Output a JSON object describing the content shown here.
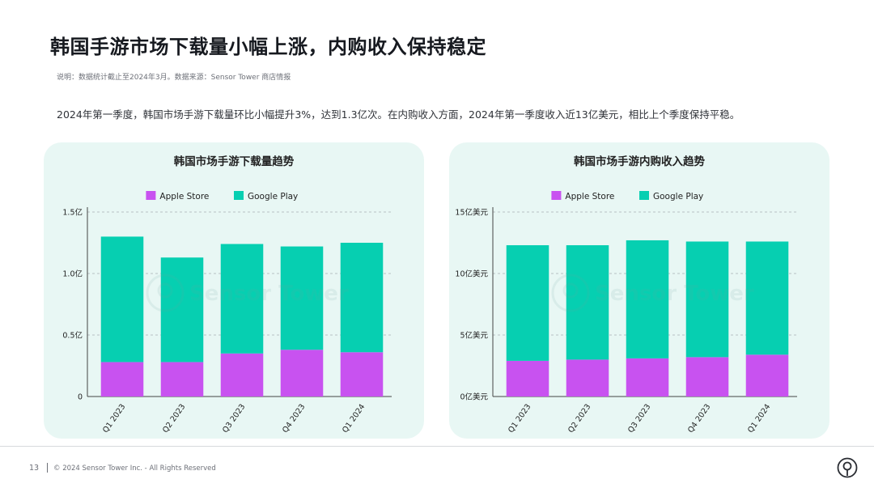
{
  "page": {
    "title": "韩国手游市场下载量小幅上涨，内购收入保持稳定",
    "note": "说明：数据统计截止至2024年3月。数据来源：Sensor Tower 商店情报",
    "summary": "2024年第一季度，韩国市场手游下载量环比小幅提升3%，达到1.3亿次。在内购收入方面，2024年第一季度收入近13亿美元，相比上个季度保持平稳。",
    "page_number": "13",
    "copyright": "© 2024 Sensor Tower Inc. - All Rights Reserved",
    "watermark": "Sensor Tower"
  },
  "colors": {
    "apple": "#c852f0",
    "google": "#06cfb1",
    "panel_bg": "#e8f7f4",
    "grid": "#b9c2c4",
    "axis": "#444444",
    "text": "#222222"
  },
  "chart_data": [
    {
      "type": "bar",
      "stacked": true,
      "title": "韩国市场手游下载量趋势",
      "categories": [
        "Q1 2023",
        "Q2 2023",
        "Q3 2023",
        "Q4 2023",
        "Q1 2024"
      ],
      "series": [
        {
          "name": "Apple Store",
          "values": [
            0.28,
            0.28,
            0.35,
            0.38,
            0.36
          ]
        },
        {
          "name": "Google Play",
          "values": [
            1.02,
            0.85,
            0.89,
            0.84,
            0.89
          ]
        }
      ],
      "ylim": [
        0,
        1.5
      ],
      "yticks": [
        0,
        0.5,
        1.0,
        1.5
      ],
      "ytick_labels": [
        "0",
        "0.5亿",
        "1.0亿",
        "1.5亿"
      ],
      "legend_position": "top",
      "grid": true
    },
    {
      "type": "bar",
      "stacked": true,
      "title": "韩国市场手游内购收入趋势",
      "categories": [
        "Q1 2023",
        "Q2 2023",
        "Q3 2023",
        "Q4 2023",
        "Q1 2024"
      ],
      "series": [
        {
          "name": "Apple Store",
          "values": [
            2.9,
            3.0,
            3.1,
            3.2,
            3.4
          ]
        },
        {
          "name": "Google Play",
          "values": [
            9.4,
            9.3,
            9.6,
            9.4,
            9.2
          ]
        }
      ],
      "ylim": [
        0,
        15
      ],
      "yticks": [
        0,
        5,
        10,
        15
      ],
      "ytick_labels": [
        "0亿美元",
        "5亿美元",
        "10亿美元",
        "15亿美元"
      ],
      "legend_position": "top",
      "grid": true
    }
  ]
}
